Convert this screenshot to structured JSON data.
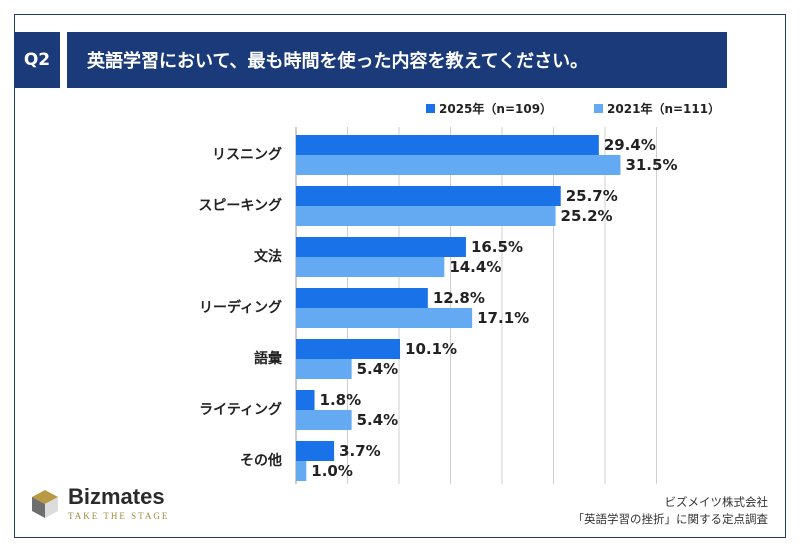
{
  "header": {
    "badge": "Q2",
    "title": "英語学習において、最も時間を使った内容を教えてください。"
  },
  "colors": {
    "navy": "#1b3a7a",
    "series_2025": "#1a72e8",
    "series_2021": "#64aaf2",
    "grid": "#cfcfcf",
    "logo_gold": "#a08a3c"
  },
  "chart_data": {
    "type": "bar",
    "orientation": "horizontal",
    "categories": [
      "リスニング",
      "スピーキング",
      "文法",
      "リーディング",
      "語彙",
      "ライティング",
      "その他"
    ],
    "series": [
      {
        "name": "2025年（n=109）",
        "values": [
          29.4,
          25.7,
          16.5,
          12.8,
          10.1,
          1.8,
          3.7
        ]
      },
      {
        "name": "2021年（n=111）",
        "values": [
          31.5,
          25.2,
          14.4,
          17.1,
          5.4,
          5.4,
          1.0
        ]
      }
    ],
    "value_suffix": "%",
    "xlim": [
      0,
      35
    ],
    "grid": true,
    "legend_position": "top-right"
  },
  "footer": {
    "logo_name": "Bizmates",
    "logo_tagline": "TAKE THE STAGE",
    "source_line1": "ビズメイツ株式会社",
    "source_line2": "「英語学習の挫折」に関する定点調査"
  }
}
